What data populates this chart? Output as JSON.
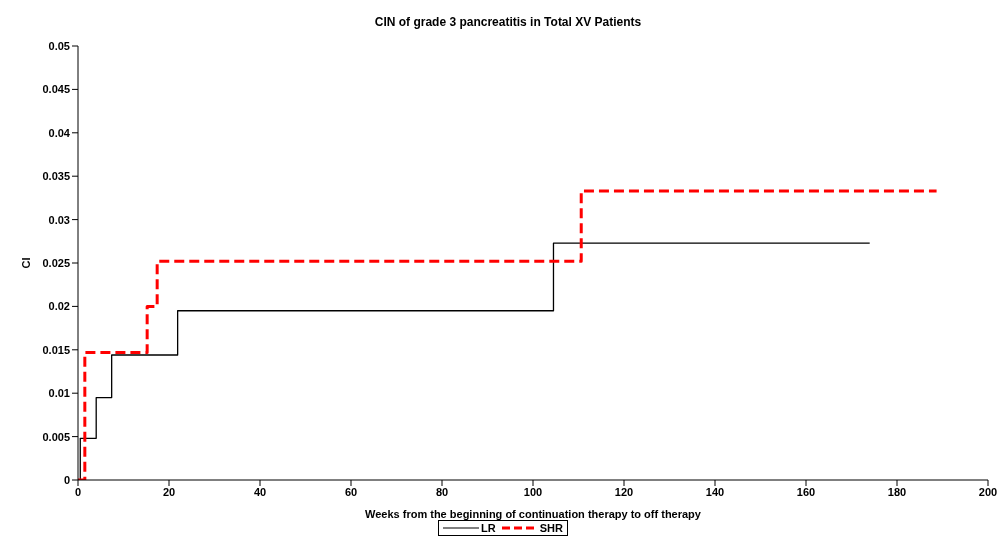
{
  "chart_data": {
    "type": "step",
    "title": "CIN of grade 3 pancreatitis in Total XV Patients",
    "xlabel": "Weeks from the beginning of continuation therapy to off therapy",
    "ylabel": "CI",
    "xlim": [
      0,
      200
    ],
    "xticks": [
      0,
      20,
      40,
      60,
      80,
      100,
      120,
      140,
      160,
      180,
      200
    ],
    "ylim": [
      0,
      0.05
    ],
    "yticks": [
      0,
      0.005,
      0.01,
      0.015,
      0.02,
      0.025,
      0.03,
      0.035,
      0.04,
      0.045,
      0.05
    ],
    "grid": false,
    "legend": "bottom",
    "marker": "none",
    "series": [
      {
        "name": "LR",
        "color": "#000000",
        "line_style": "solid",
        "x": [
          0,
          0.5,
          4,
          7.4,
          21.9,
          104.5,
          174
        ],
        "values": [
          0,
          0.0048,
          0.0095,
          0.0144,
          0.0195,
          0.0273,
          0.0273
        ]
      },
      {
        "name": "SHR",
        "color": "#ff0000",
        "line_style": "dashed",
        "x": [
          0,
          1.5,
          15.2,
          17.4,
          110.6,
          188.7
        ],
        "values": [
          0,
          0.0147,
          0.02,
          0.0252,
          0.0333,
          0.0333
        ]
      }
    ]
  }
}
